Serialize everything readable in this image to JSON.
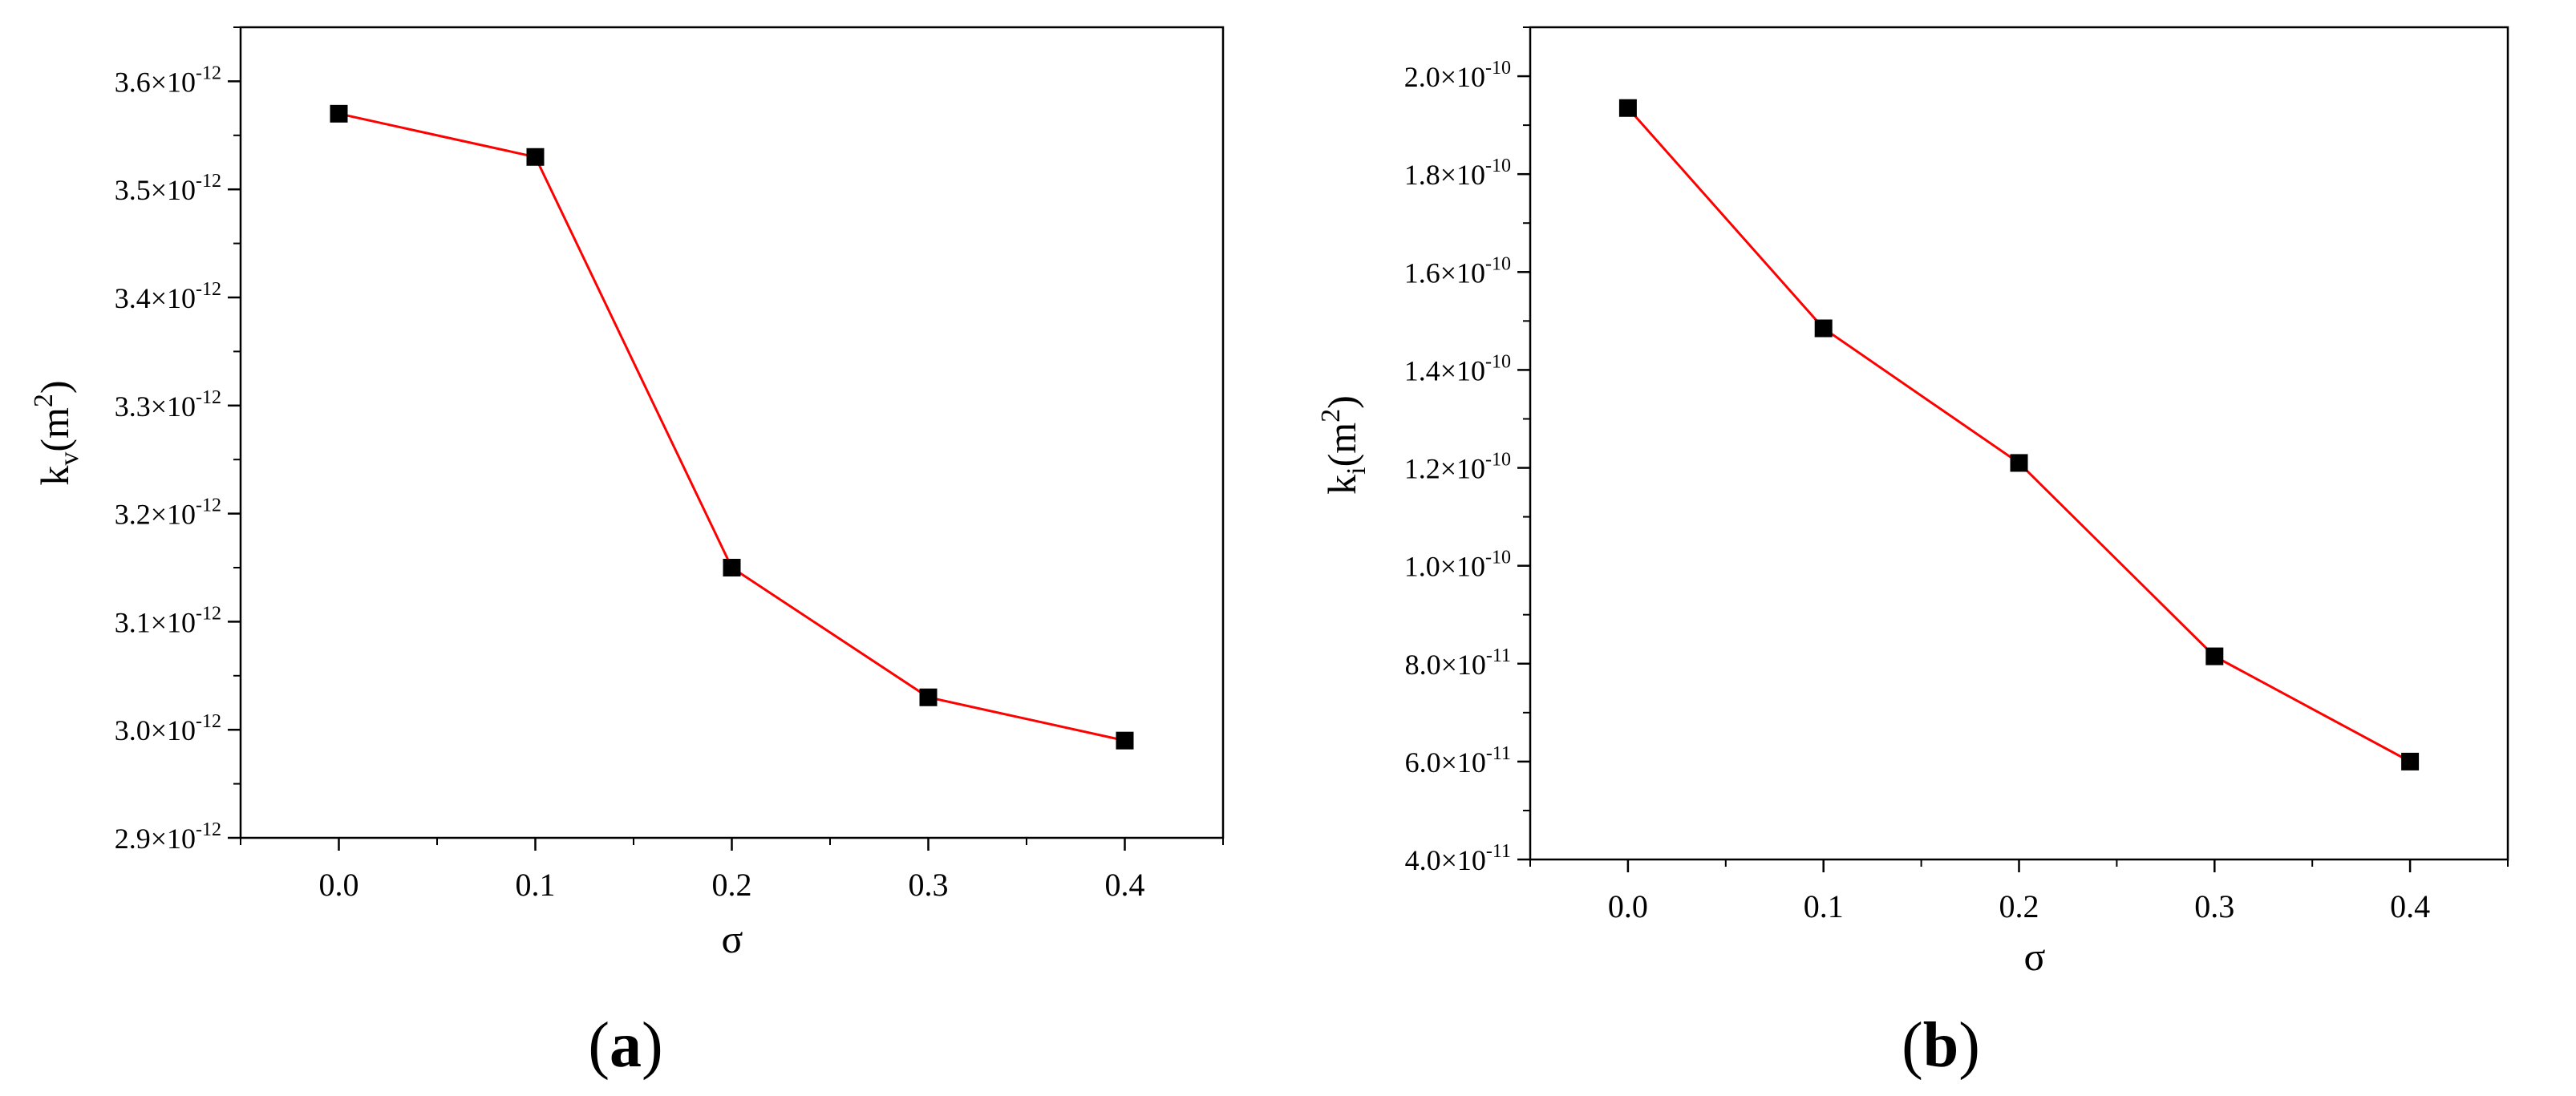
{
  "chart_data": [
    {
      "type": "line",
      "panel_label": "(a)",
      "xlabel": "σ",
      "ylabel": {
        "base": "k",
        "sub": "v",
        "unit": "(m",
        "sup": "2",
        "close": ")"
      },
      "x_ticks": [
        "0.0",
        "0.1",
        "0.2",
        "0.3",
        "0.4"
      ],
      "y_ticks": [
        {
          "mantissa": "2.9",
          "exp": "-12"
        },
        {
          "mantissa": "3.0",
          "exp": "-12"
        },
        {
          "mantissa": "3.1",
          "exp": "-12"
        },
        {
          "mantissa": "3.2",
          "exp": "-12"
        },
        {
          "mantissa": "3.3",
          "exp": "-12"
        },
        {
          "mantissa": "3.4",
          "exp": "-12"
        },
        {
          "mantissa": "3.5",
          "exp": "-12"
        },
        {
          "mantissa": "3.6",
          "exp": "-12"
        }
      ],
      "xlim": [
        -0.05,
        0.45
      ],
      "ylim": [
        2.9e-12,
        3.65e-12
      ],
      "x": [
        0.0,
        0.1,
        0.2,
        0.3,
        0.4
      ],
      "y": [
        3.57e-12,
        3.53e-12,
        3.15e-12,
        3.03e-12,
        2.99e-12
      ],
      "line_color": "#ff0000",
      "marker": "square",
      "marker_color": "#000000",
      "grid": false
    },
    {
      "type": "line",
      "panel_label": "(b)",
      "xlabel": "σ",
      "ylabel": {
        "base": "k",
        "sub": "i",
        "unit": "(m",
        "sup": "2",
        "close": ")"
      },
      "x_ticks": [
        "0.0",
        "0.1",
        "0.2",
        "0.3",
        "0.4"
      ],
      "y_ticks": [
        {
          "mantissa": "4.0",
          "exp": "-11"
        },
        {
          "mantissa": "6.0",
          "exp": "-11"
        },
        {
          "mantissa": "8.0",
          "exp": "-11"
        },
        {
          "mantissa": "1.0",
          "exp": "-10"
        },
        {
          "mantissa": "1.2",
          "exp": "-10"
        },
        {
          "mantissa": "1.4",
          "exp": "-10"
        },
        {
          "mantissa": "1.6",
          "exp": "-10"
        },
        {
          "mantissa": "1.8",
          "exp": "-10"
        },
        {
          "mantissa": "2.0",
          "exp": "-10"
        }
      ],
      "xlim": [
        -0.05,
        0.45
      ],
      "ylim": [
        4e-11,
        2.1e-10
      ],
      "x": [
        0.0,
        0.1,
        0.2,
        0.3,
        0.4
      ],
      "y": [
        1.935e-10,
        1.485e-10,
        1.21e-10,
        8.15e-11,
        6e-11
      ],
      "line_color": "#ff0000",
      "marker": "square",
      "marker_color": "#000000",
      "grid": false
    }
  ]
}
